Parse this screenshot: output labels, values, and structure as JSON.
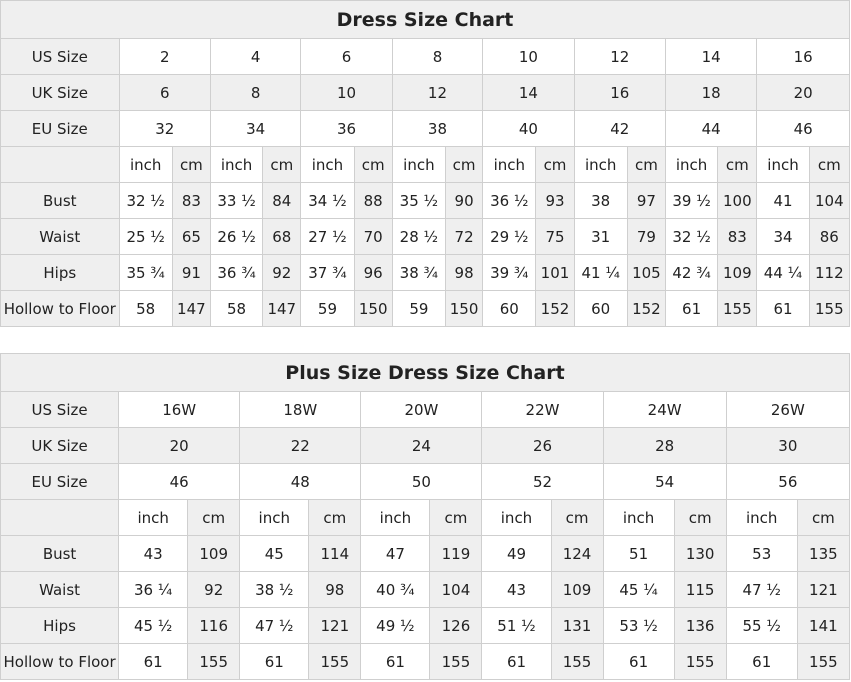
{
  "charts": [
    {
      "title": "Dress Size Chart",
      "us_label": "US Size",
      "uk_label": "UK Size",
      "eu_label": "EU Size",
      "us": [
        "2",
        "4",
        "6",
        "8",
        "10",
        "12",
        "14",
        "16"
      ],
      "uk": [
        "6",
        "8",
        "10",
        "12",
        "14",
        "16",
        "18",
        "20"
      ],
      "eu": [
        "32",
        "34",
        "36",
        "38",
        "40",
        "42",
        "44",
        "46"
      ],
      "unit_inch": "inch",
      "unit_cm": "cm",
      "measures": [
        {
          "label": "Bust",
          "values": [
            [
              "32 ½",
              "83"
            ],
            [
              "33 ½",
              "84"
            ],
            [
              "34 ½",
              "88"
            ],
            [
              "35 ½",
              "90"
            ],
            [
              "36 ½",
              "93"
            ],
            [
              "38",
              "97"
            ],
            [
              "39 ½",
              "100"
            ],
            [
              "41",
              "104"
            ]
          ]
        },
        {
          "label": "Waist",
          "values": [
            [
              "25 ½",
              "65"
            ],
            [
              "26 ½",
              "68"
            ],
            [
              "27 ½",
              "70"
            ],
            [
              "28 ½",
              "72"
            ],
            [
              "29 ½",
              "75"
            ],
            [
              "31",
              "79"
            ],
            [
              "32 ½",
              "83"
            ],
            [
              "34",
              "86"
            ]
          ]
        },
        {
          "label": "Hips",
          "values": [
            [
              "35 ¾",
              "91"
            ],
            [
              "36 ¾",
              "92"
            ],
            [
              "37 ¾",
              "96"
            ],
            [
              "38 ¾",
              "98"
            ],
            [
              "39 ¾",
              "101"
            ],
            [
              "41 ¼",
              "105"
            ],
            [
              "42 ¾",
              "109"
            ],
            [
              "44 ¼",
              "112"
            ]
          ]
        },
        {
          "label": "Hollow to Floor",
          "values": [
            [
              "58",
              "147"
            ],
            [
              "58",
              "147"
            ],
            [
              "59",
              "150"
            ],
            [
              "59",
              "150"
            ],
            [
              "60",
              "152"
            ],
            [
              "60",
              "152"
            ],
            [
              "61",
              "155"
            ],
            [
              "61",
              "155"
            ]
          ]
        }
      ]
    },
    {
      "title": "Plus Size Dress Size Chart",
      "us_label": "US Size",
      "uk_label": "UK Size",
      "eu_label": "EU Size",
      "us": [
        "16W",
        "18W",
        "20W",
        "22W",
        "24W",
        "26W"
      ],
      "uk": [
        "20",
        "22",
        "24",
        "26",
        "28",
        "30"
      ],
      "eu": [
        "46",
        "48",
        "50",
        "52",
        "54",
        "56"
      ],
      "unit_inch": "inch",
      "unit_cm": "cm",
      "measures": [
        {
          "label": "Bust",
          "values": [
            [
              "43",
              "109"
            ],
            [
              "45",
              "114"
            ],
            [
              "47",
              "119"
            ],
            [
              "49",
              "124"
            ],
            [
              "51",
              "130"
            ],
            [
              "53",
              "135"
            ]
          ]
        },
        {
          "label": "Waist",
          "values": [
            [
              "36 ¼",
              "92"
            ],
            [
              "38 ½",
              "98"
            ],
            [
              "40 ¾",
              "104"
            ],
            [
              "43",
              "109"
            ],
            [
              "45 ¼",
              "115"
            ],
            [
              "47 ½",
              "121"
            ]
          ]
        },
        {
          "label": "Hips",
          "values": [
            [
              "45 ½",
              "116"
            ],
            [
              "47 ½",
              "121"
            ],
            [
              "49 ½",
              "126"
            ],
            [
              "51 ½",
              "131"
            ],
            [
              "53 ½",
              "136"
            ],
            [
              "55 ½",
              "141"
            ]
          ]
        },
        {
          "label": "Hollow to Floor",
          "values": [
            [
              "61",
              "155"
            ],
            [
              "61",
              "155"
            ],
            [
              "61",
              "155"
            ],
            [
              "61",
              "155"
            ],
            [
              "61",
              "155"
            ],
            [
              "61",
              "155"
            ]
          ]
        }
      ]
    }
  ]
}
